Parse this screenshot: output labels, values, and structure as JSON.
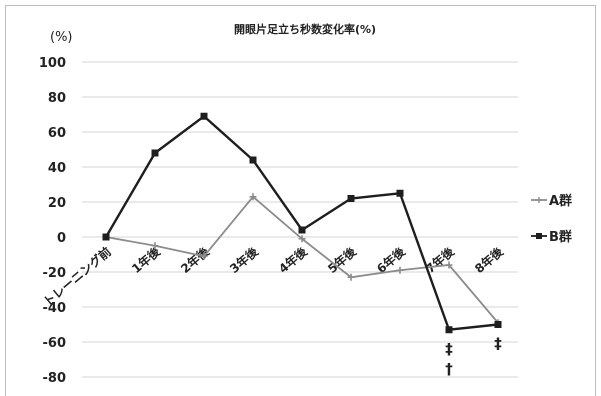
{
  "chart_data": {
    "type": "line",
    "title": "開眼片足立ち秒数変化率(%)",
    "ylabel": "(%)",
    "xlabel": "",
    "ylim": [
      -80,
      100
    ],
    "yticks": [
      100,
      80,
      60,
      40,
      20,
      0,
      -20,
      -40,
      -60,
      -80
    ],
    "grid": "horizontal",
    "legend_position": "right",
    "categories": [
      "トレーニング前",
      "1年後",
      "2年後",
      "3年後",
      "4年後",
      "5年後",
      "6年後",
      "7年後",
      "8年後"
    ],
    "series": [
      {
        "name": "A群",
        "marker": "+",
        "color": "#8c8c8c",
        "values": [
          0,
          -5,
          -11,
          23,
          -1,
          -23,
          -19,
          -16,
          -49
        ]
      },
      {
        "name": "B群",
        "marker": "square",
        "color": "#1e1e1e",
        "values": [
          0,
          48,
          69,
          44,
          4,
          22,
          25,
          -53,
          -50
        ]
      }
    ],
    "annotations": [
      {
        "category": "7年後",
        "text": "‡"
      },
      {
        "category": "7年後",
        "text": "†"
      },
      {
        "category": "8年後",
        "text": "‡"
      }
    ]
  }
}
